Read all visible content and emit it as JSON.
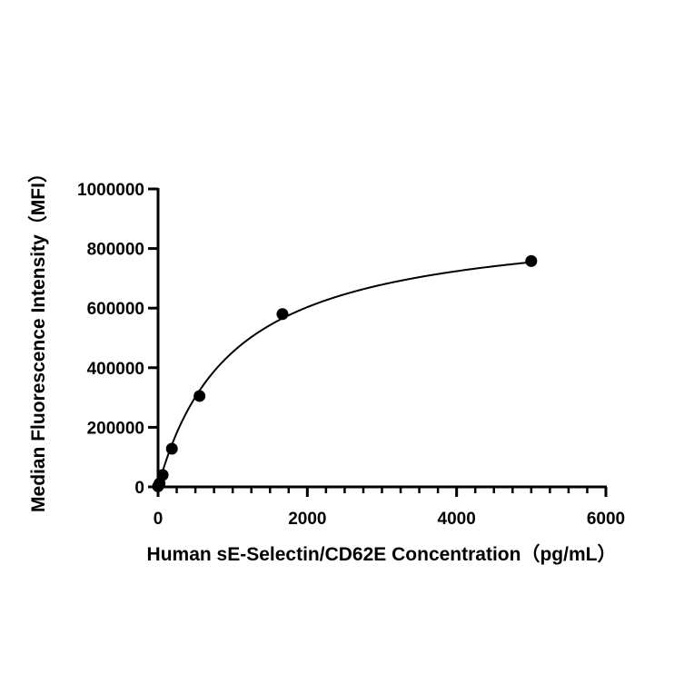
{
  "chart_data": {
    "type": "scatter",
    "title": "",
    "xlabel": "Human sE-Selectin/CD62E Concentration（pg/mL）",
    "ylabel": "Median Fluorescence Intensity（MFI）",
    "xlim": [
      0,
      6000
    ],
    "ylim": [
      0,
      1000000
    ],
    "x_ticks": [
      0,
      2000,
      4000,
      6000
    ],
    "x_tick_labels": [
      "0",
      "2000",
      "4000",
      "6000"
    ],
    "x_minor_step": 250,
    "y_ticks": [
      0,
      200000,
      400000,
      600000,
      800000,
      1000000
    ],
    "y_tick_labels": [
      "0",
      "200000",
      "400000",
      "600000",
      "800000",
      "1000000"
    ],
    "grid": false,
    "legend": null,
    "series": [
      {
        "name": "Measured",
        "marker": "filled-circle",
        "color": "#000000",
        "x": [
          0,
          20.6,
          61.7,
          185.2,
          555.6,
          1666.7,
          5000
        ],
        "y": [
          2000,
          12000,
          40000,
          128000,
          305000,
          580000,
          758000
        ]
      },
      {
        "name": "Fitted curve",
        "line": "solid",
        "color": "#000000",
        "fit": {
          "model": "hyperbolic",
          "Bmax": 905000,
          "Kd": 1000,
          "hill": 1.0
        }
      }
    ]
  }
}
